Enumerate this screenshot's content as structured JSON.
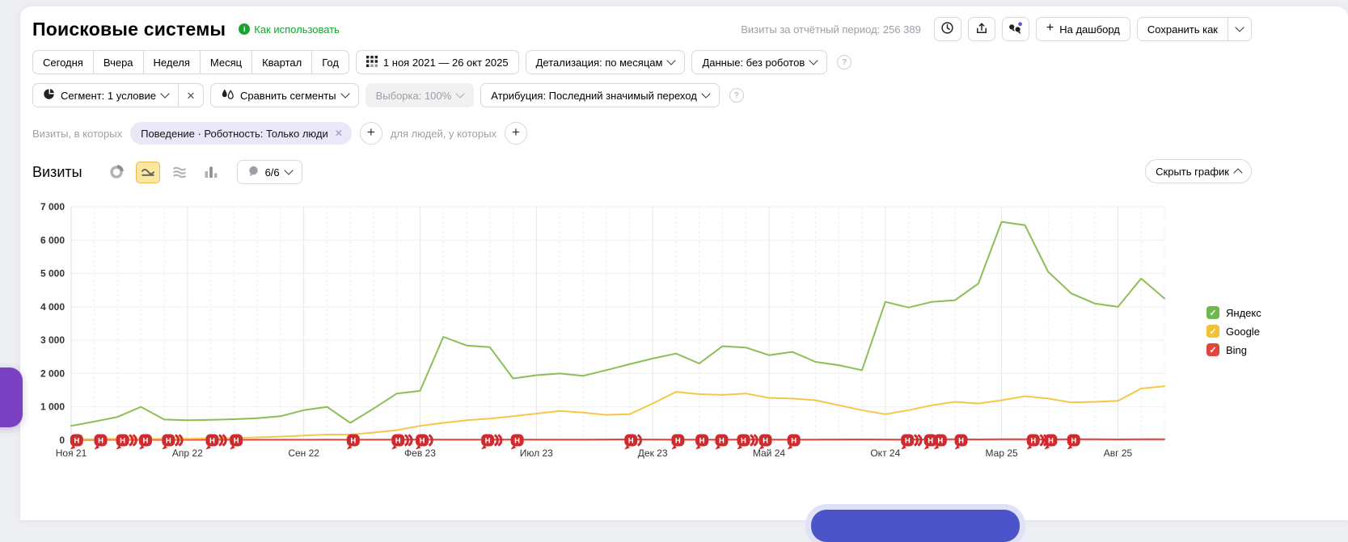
{
  "header": {
    "title": "Поисковые системы",
    "how_to_link": "Как использовать",
    "period_visits": "Визиты за отчётный период: 256 389",
    "dashboard_button": "На дашборд",
    "save_as_button": "Сохранить как"
  },
  "toolbar": {
    "period_tabs": [
      "Сегодня",
      "Вчера",
      "Неделя",
      "Месяц",
      "Квартал",
      "Год"
    ],
    "date_range": "1 ноя 2021 — 26 окт 2025",
    "detail_select": "Детализация: по месяцам",
    "data_select": "Данные: без роботов"
  },
  "segment_bar": {
    "segment_button": "Сегмент: 1 условие",
    "compare_button": "Сравнить сегменты",
    "sample_button": "Выборка: 100%",
    "attribution_button": "Атрибуция: Последний значимый переход"
  },
  "filter_bar": {
    "visits_prefix": "Визиты, в которых",
    "segment_chip": "Поведение · Роботность: Только люди",
    "people_prefix": "для людей, у которых"
  },
  "chart_toolbar": {
    "metric_label": "Визиты",
    "annotations_count": "6/6",
    "hide_chart_button": "Скрыть график"
  },
  "legend": [
    {
      "label": "Яндекс",
      "color": "#6fb84b"
    },
    {
      "label": "Google",
      "color": "#f2c136"
    },
    {
      "label": "Bing",
      "color": "#e2453d"
    }
  ],
  "widgets": {
    "side_tab_color": "#7a40c2",
    "bottom_button_color": "#4b55c9"
  },
  "chart_data": {
    "type": "line",
    "title": "Визиты",
    "xlabel": "",
    "ylabel": "",
    "ylim": [
      0,
      7000
    ],
    "ytick_labels": [
      "0",
      "1 000",
      "2 000",
      "3 000",
      "4 000",
      "5 000",
      "6 000",
      "7 000"
    ],
    "x_tick_every": 5,
    "grid": true,
    "legend_position": "right",
    "x": [
      "Ноя 21",
      "Дек 21",
      "Янв 22",
      "Фев 22",
      "Мар 22",
      "Апр 22",
      "Май 22",
      "Июн 22",
      "Июл 22",
      "Авг 22",
      "Сен 22",
      "Окт 22",
      "Ноя 22",
      "Дек 22",
      "Янв 23",
      "Фев 23",
      "Мар 23",
      "Апр 23",
      "Май 23",
      "Июн 23",
      "Июл 23",
      "Авг 23",
      "Сен 23",
      "Окт 23",
      "Ноя 23",
      "Дек 23",
      "Янв 24",
      "Фев 24",
      "Мар 24",
      "Апр 24",
      "Май 24",
      "Июн 24",
      "Июл 24",
      "Авг 24",
      "Сен 24",
      "Окт 24",
      "Ноя 24",
      "Дек 24",
      "Янв 25",
      "Фев 25",
      "Мар 25",
      "Апр 25",
      "Май 25",
      "Июн 25",
      "Июл 25",
      "Авг 25",
      "Сен 25",
      "Окт 25"
    ],
    "series": [
      {
        "name": "Яндекс",
        "color": "#8bbf56",
        "values": [
          430,
          560,
          700,
          1000,
          620,
          600,
          610,
          630,
          660,
          720,
          900,
          1000,
          520,
          950,
          1400,
          1480,
          3100,
          2840,
          2790,
          1850,
          1950,
          2000,
          1930,
          2100,
          2280,
          2450,
          2600,
          2300,
          2820,
          2780,
          2550,
          2650,
          2350,
          2250,
          2100,
          4150,
          3980,
          4150,
          4200,
          4700,
          6550,
          6450,
          5050,
          4400,
          4100,
          4000,
          4850,
          4250
        ]
      },
      {
        "name": "Google",
        "color": "#f6c648",
        "values": [
          30,
          35,
          45,
          40,
          40,
          45,
          55,
          65,
          85,
          110,
          140,
          170,
          170,
          230,
          300,
          430,
          520,
          600,
          650,
          720,
          800,
          880,
          830,
          760,
          780,
          1100,
          1450,
          1380,
          1360,
          1400,
          1270,
          1250,
          1200,
          1050,
          900,
          780,
          900,
          1050,
          1150,
          1100,
          1200,
          1320,
          1250,
          1130,
          1150,
          1180,
          1550,
          1620
        ]
      },
      {
        "name": "Bing",
        "color": "#e2453d",
        "values": [
          10,
          12,
          14,
          12,
          13,
          12,
          14,
          13,
          15,
          14,
          15,
          16,
          15,
          18,
          20,
          22,
          20,
          18,
          20,
          22,
          20,
          18,
          20,
          22,
          25,
          22,
          20,
          18,
          20,
          22,
          20,
          18,
          20,
          22,
          25,
          22,
          20,
          25,
          28,
          25,
          30,
          28,
          25,
          30,
          28,
          25,
          30,
          32
        ]
      }
    ],
    "annotation_markers": {
      "letter": "Н",
      "color": "#cf2b2e",
      "positions_pct": [
        {
          "pos": 0.5,
          "count": 1
        },
        {
          "pos": 2.7,
          "count": 1
        },
        {
          "pos": 4.7,
          "count": 3
        },
        {
          "pos": 6.8,
          "count": 1
        },
        {
          "pos": 8.9,
          "count": 3
        },
        {
          "pos": 12.9,
          "count": 3
        },
        {
          "pos": 15.1,
          "count": 1
        },
        {
          "pos": 25.8,
          "count": 1
        },
        {
          "pos": 29.9,
          "count": 3
        },
        {
          "pos": 32.1,
          "count": 2
        },
        {
          "pos": 38.1,
          "count": 3
        },
        {
          "pos": 40.8,
          "count": 1
        },
        {
          "pos": 51.2,
          "count": 2
        },
        {
          "pos": 55.5,
          "count": 1
        },
        {
          "pos": 57.7,
          "count": 1
        },
        {
          "pos": 59.5,
          "count": 1
        },
        {
          "pos": 61.5,
          "count": 3
        },
        {
          "pos": 63.5,
          "count": 1
        },
        {
          "pos": 66.1,
          "count": 1
        },
        {
          "pos": 76.5,
          "count": 3
        },
        {
          "pos": 78.6,
          "count": 2
        },
        {
          "pos": 79.5,
          "count": 1
        },
        {
          "pos": 81.4,
          "count": 1
        },
        {
          "pos": 88.0,
          "count": 3
        },
        {
          "pos": 89.6,
          "count": 1
        },
        {
          "pos": 91.7,
          "count": 1
        }
      ]
    }
  }
}
